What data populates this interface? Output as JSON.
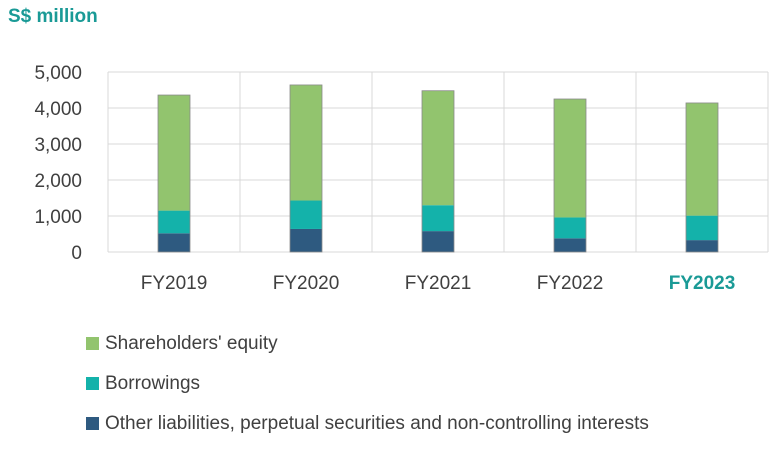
{
  "unit_label": "S$ million",
  "colors": {
    "equity": "#92c46e",
    "borrowings": "#14b2aa",
    "other": "#2e5a80",
    "highlight": "#1a9a96",
    "grid": "#d9d9d9"
  },
  "chart_data": {
    "type": "bar",
    "stacked": true,
    "categories": [
      "FY2019",
      "FY2020",
      "FY2021",
      "FY2022",
      "FY2023"
    ],
    "highlight_category": "FY2023",
    "series": [
      {
        "name": "Other liabilities, perpetual securities and non-controlling interests",
        "color": "#2e5a80",
        "values": [
          520,
          640,
          580,
          380,
          330
        ]
      },
      {
        "name": "Borrowings",
        "color": "#14b2aa",
        "values": [
          630,
          790,
          720,
          580,
          680
        ]
      },
      {
        "name": "Shareholders' equity",
        "color": "#92c46e",
        "values": [
          3210,
          3210,
          3180,
          3290,
          3130
        ]
      }
    ],
    "ylim": [
      0,
      5000
    ],
    "yticks": [
      0,
      1000,
      2000,
      3000,
      4000,
      5000
    ],
    "ytick_labels": [
      "0",
      "1,000",
      "2,000",
      "3,000",
      "4,000",
      "5,000"
    ],
    "grid": true,
    "legend_placement": "bottom"
  },
  "legend": [
    {
      "label": "Shareholders' equity",
      "color": "#92c46e"
    },
    {
      "label": "Borrowings",
      "color": "#14b2aa"
    },
    {
      "label": "Other liabilities, perpetual securities and non-controlling interests",
      "color": "#2e5a80"
    }
  ]
}
